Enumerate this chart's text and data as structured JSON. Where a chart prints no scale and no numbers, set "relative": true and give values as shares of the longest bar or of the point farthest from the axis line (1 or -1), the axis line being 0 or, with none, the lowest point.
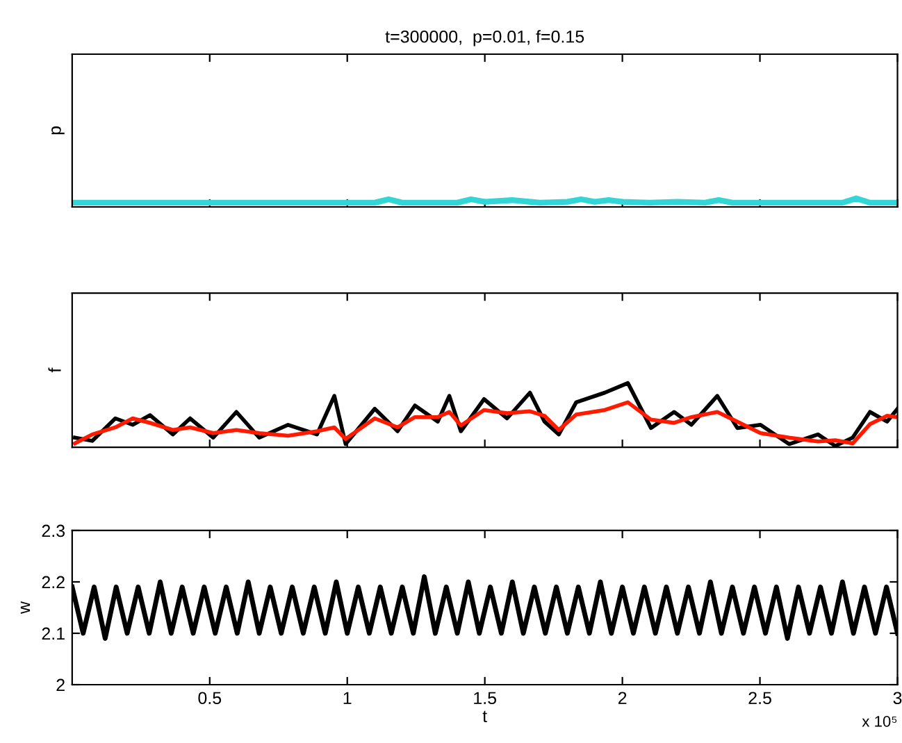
{
  "chart_data": [
    {
      "type": "line",
      "title": "t=300000,  p=0.01, f=0.15",
      "ylabel": "p",
      "relative": true,
      "tick_labels": false,
      "xlim": [
        0,
        3
      ],
      "xticks": [
        0.5,
        1,
        1.5,
        2,
        2.5,
        3
      ],
      "series": [
        {
          "color": "#33d6d6",
          "x": [
            0,
            0.1,
            0.2,
            0.3,
            0.4,
            0.5,
            0.6,
            0.7,
            0.8,
            0.9,
            1,
            1.1,
            1.15,
            1.2,
            1.3,
            1.4,
            1.45,
            1.5,
            1.6,
            1.7,
            1.8,
            1.85,
            1.9,
            1.95,
            2,
            2.1,
            2.2,
            2.3,
            2.35,
            2.4,
            2.5,
            2.6,
            2.7,
            2.8,
            2.85,
            2.9,
            3
          ],
          "values": [
            0.5,
            0.5,
            0.5,
            0.5,
            0.5,
            0.5,
            0.5,
            0.5,
            0.5,
            0.5,
            0.5,
            0.5,
            0.9,
            0.5,
            0.5,
            0.5,
            0.9,
            0.6,
            0.8,
            0.5,
            0.6,
            0.9,
            0.6,
            0.8,
            0.6,
            0.5,
            0.6,
            0.5,
            0.8,
            0.5,
            0.5,
            0.5,
            0.5,
            0.5,
            1,
            0.5,
            0.5
          ]
        }
      ]
    },
    {
      "type": "line",
      "ylabel": "f",
      "relative": true,
      "tick_labels": false,
      "xlim": [
        0,
        3
      ],
      "xticks": [
        0.5,
        1,
        1.5,
        2,
        2.5,
        3
      ],
      "series": [
        {
          "color": "#000000",
          "x": [
            0.01,
            0.073,
            0.157,
            0.22,
            0.283,
            0.366,
            0.429,
            0.513,
            0.597,
            0.68,
            0.785,
            0.89,
            0.953,
            0.994,
            1.1,
            1.183,
            1.246,
            1.329,
            1.371,
            1.413,
            1.497,
            1.581,
            1.664,
            1.717,
            1.769,
            1.832,
            1.936,
            2.02,
            2.104,
            2.188,
            2.251,
            2.345,
            2.418,
            2.502,
            2.606,
            2.711,
            2.774,
            2.837,
            2.9,
            2.962,
            3
          ],
          "values": [
            0.15,
            0.1,
            0.45,
            0.35,
            0.5,
            0.2,
            0.45,
            0.15,
            0.55,
            0.15,
            0.35,
            0.2,
            0.8,
            0.05,
            0.6,
            0.25,
            0.65,
            0.4,
            0.8,
            0.25,
            0.75,
            0.45,
            0.85,
            0.4,
            0.2,
            0.7,
            0.85,
            1,
            0.3,
            0.55,
            0.35,
            0.8,
            0.3,
            0.35,
            0.05,
            0.2,
            0.02,
            0.15,
            0.55,
            0.4,
            0.6
          ]
        },
        {
          "color": "#ff1a00",
          "x": [
            0.01,
            0.073,
            0.157,
            0.22,
            0.283,
            0.366,
            0.429,
            0.513,
            0.597,
            0.68,
            0.785,
            0.89,
            0.953,
            0.994,
            1.1,
            1.183,
            1.246,
            1.329,
            1.371,
            1.413,
            1.497,
            1.581,
            1.664,
            1.717,
            1.769,
            1.832,
            1.936,
            2.02,
            2.104,
            2.188,
            2.251,
            2.345,
            2.418,
            2.502,
            2.606,
            2.711,
            2.774,
            2.837,
            2.9,
            2.962,
            3
          ],
          "values": [
            0.06,
            0.2,
            0.31,
            0.45,
            0.38,
            0.27,
            0.31,
            0.22,
            0.27,
            0.22,
            0.18,
            0.25,
            0.31,
            0.13,
            0.45,
            0.31,
            0.47,
            0.47,
            0.55,
            0.34,
            0.58,
            0.53,
            0.56,
            0.49,
            0.27,
            0.51,
            0.58,
            0.7,
            0.43,
            0.38,
            0.47,
            0.55,
            0.4,
            0.22,
            0.15,
            0.09,
            0.11,
            0.06,
            0.36,
            0.49,
            0.47
          ]
        }
      ]
    },
    {
      "type": "line",
      "ylabel": "w",
      "xlabel": "t",
      "xlim": [
        0,
        3
      ],
      "ylim": [
        2,
        2.3
      ],
      "yticks": [
        2,
        2.1,
        2.2,
        2.3
      ],
      "xticks": [
        0.5,
        1,
        1.5,
        2,
        2.5,
        3
      ],
      "annotations": [
        "x 10⁵"
      ],
      "series": [
        {
          "color": "#000000",
          "x": [
            0,
            0.04,
            0.08,
            0.12,
            0.16,
            0.2,
            0.24,
            0.28,
            0.32,
            0.36,
            0.4,
            0.44,
            0.48,
            0.52,
            0.56,
            0.6,
            0.64,
            0.68,
            0.72,
            0.76,
            0.8,
            0.84,
            0.88,
            0.92,
            0.96,
            1,
            1.04,
            1.08,
            1.12,
            1.16,
            1.2,
            1.24,
            1.28,
            1.32,
            1.36,
            1.4,
            1.44,
            1.48,
            1.52,
            1.56,
            1.6,
            1.64,
            1.68,
            1.72,
            1.76,
            1.8,
            1.84,
            1.88,
            1.92,
            1.96,
            2,
            2.04,
            2.08,
            2.12,
            2.16,
            2.2,
            2.24,
            2.28,
            2.32,
            2.36,
            2.4,
            2.44,
            2.48,
            2.52,
            2.56,
            2.6,
            2.64,
            2.68,
            2.72,
            2.76,
            2.8,
            2.84,
            2.88,
            2.92,
            2.96,
            3
          ],
          "values": [
            2.19,
            2.1,
            2.19,
            2.09,
            2.19,
            2.1,
            2.19,
            2.1,
            2.2,
            2.1,
            2.19,
            2.1,
            2.19,
            2.1,
            2.19,
            2.1,
            2.2,
            2.1,
            2.19,
            2.1,
            2.19,
            2.1,
            2.19,
            2.1,
            2.2,
            2.1,
            2.19,
            2.1,
            2.19,
            2.1,
            2.19,
            2.1,
            2.21,
            2.1,
            2.19,
            2.1,
            2.2,
            2.1,
            2.19,
            2.1,
            2.2,
            2.1,
            2.19,
            2.1,
            2.19,
            2.1,
            2.19,
            2.1,
            2.2,
            2.1,
            2.19,
            2.1,
            2.19,
            2.1,
            2.19,
            2.1,
            2.19,
            2.1,
            2.2,
            2.1,
            2.19,
            2.1,
            2.19,
            2.1,
            2.19,
            2.09,
            2.19,
            2.1,
            2.19,
            2.1,
            2.2,
            2.1,
            2.19,
            2.1,
            2.19,
            2.1
          ]
        }
      ]
    }
  ]
}
